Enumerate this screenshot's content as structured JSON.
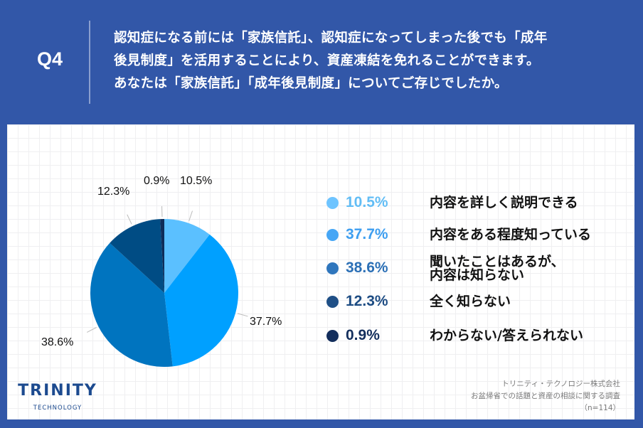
{
  "header": {
    "question_number": "Q4",
    "question_lines": [
      "認知症になる前には「家族信託」、認知症になってしまった後でも「成年",
      "後見制度」を活用することにより、資産凍結を免れることができます。",
      "あなたは「家族信託」「成年後見制度」についてご存じでしたか。"
    ]
  },
  "colors": {
    "background": "#3257a8",
    "panel": "#ffffff",
    "grid": "#efeff1"
  },
  "chart_data": {
    "type": "pie",
    "title": "認知症になる前には「家族信託」、認知症になってしまった後でも「成年後見制度」を活用することにより、資産凍結を免れることができます。あなたは「家族信託」「成年後見制度」についてご存じでしたか。",
    "categories": [
      "内容を詳しく説明できる",
      "内容をある程度知っている",
      "聞いたことはあるが、内容は知らない",
      "全く知らない",
      "わからない/答えられない"
    ],
    "values": [
      10.5,
      37.7,
      38.6,
      12.3,
      0.9
    ],
    "unit": "%",
    "colors": [
      "#5bc0ff",
      "#00a0ff",
      "#0074bf",
      "#004c84",
      "#0e2d5a"
    ],
    "start_angle": "12 o'clock, clockwise",
    "legend_position": "right",
    "n": 114
  },
  "pie_labels": [
    "10.5%",
    "37.7%",
    "38.6%",
    "12.3%",
    "0.9%"
  ],
  "legend": {
    "items": [
      {
        "pct": "10.5%",
        "label_lines": [
          "内容を詳しく説明できる"
        ],
        "color": "#6ec4ff",
        "text_color": "#62bdf5"
      },
      {
        "pct": "37.7%",
        "label_lines": [
          "内容をある程度知っている"
        ],
        "color": "#46a6f5",
        "text_color": "#3d9ef0"
      },
      {
        "pct": "38.6%",
        "label_lines": [
          "聞いたことはあるが、",
          "内容は知らない"
        ],
        "color": "#2f76bd",
        "text_color": "#2c70b6"
      },
      {
        "pct": "12.3%",
        "label_lines": [
          "全く知らない"
        ],
        "color": "#1f4f86",
        "text_color": "#1d4c83"
      },
      {
        "pct": "0.9%",
        "label_lines": [
          "わからない/答えられない"
        ],
        "color": "#132e5c",
        "text_color": "#142f5d"
      }
    ]
  },
  "logo": {
    "main": "TRINITY",
    "sub": "TECHNOLOGY"
  },
  "source": {
    "company": "トリニティ・テクノロジー株式会社",
    "survey": "お盆帰省での話題と資産の相談に関する調査",
    "sample": "（n=114）"
  }
}
